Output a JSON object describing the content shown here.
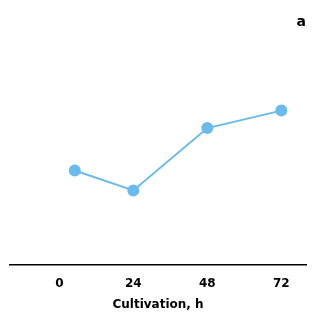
{
  "chart_data": {
    "type": "line",
    "title": "a",
    "xlabel": "Cultivation, h",
    "x": [
      5,
      24,
      48,
      72
    ],
    "values": [
      0.38,
      0.3,
      0.55,
      0.62
    ],
    "color": "#6abaec",
    "marker": "circle",
    "xlim": [
      -16,
      80
    ],
    "xticks": [
      0,
      24,
      48,
      72
    ],
    "ylim": [
      0.0,
      0.9
    ],
    "tick_labels": "x",
    "grid": false
  }
}
